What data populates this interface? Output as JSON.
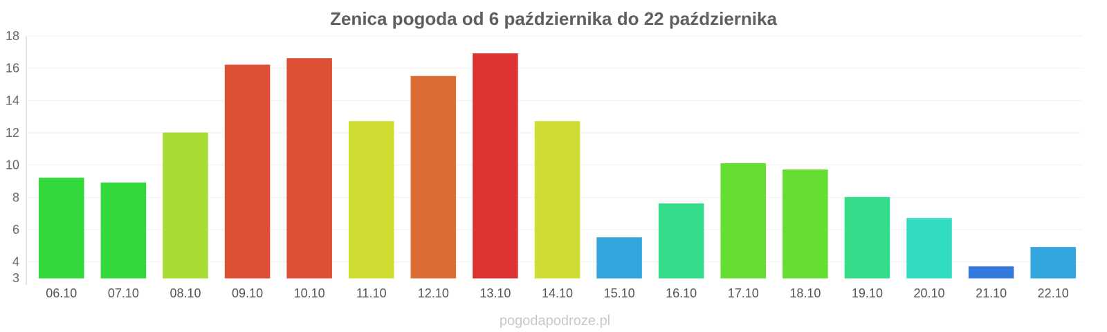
{
  "chart_data": {
    "type": "bar",
    "title": "Zenica pogoda od 6 października do 22 października",
    "categories": [
      "06.10",
      "07.10",
      "08.10",
      "09.10",
      "10.10",
      "11.10",
      "12.10",
      "13.10",
      "14.10",
      "15.10",
      "16.10",
      "17.10",
      "18.10",
      "19.10",
      "20.10",
      "21.10",
      "22.10"
    ],
    "values": [
      9.2,
      8.9,
      12.0,
      16.2,
      16.6,
      12.7,
      15.5,
      16.9,
      12.7,
      5.5,
      7.6,
      10.1,
      9.7,
      8.0,
      6.7,
      3.7,
      4.9
    ],
    "colors": [
      "#33d93a",
      "#33d93a",
      "#aadd33",
      "#dd5033",
      "#dd5033",
      "#cfdd33",
      "#dd6e33",
      "#dd3333",
      "#cfdd33",
      "#33a6dd",
      "#33dd8a",
      "#66dd33",
      "#66dd33",
      "#33dd8a",
      "#33ddbf",
      "#3378dd",
      "#33a6dd"
    ],
    "yticks": [
      3,
      4,
      6,
      8,
      10,
      12,
      14,
      16,
      18
    ],
    "ylim": [
      3,
      18
    ],
    "xlabel": "",
    "ylabel": "",
    "grid": true
  },
  "footer": {
    "credit": "pogodapodroze.pl"
  }
}
